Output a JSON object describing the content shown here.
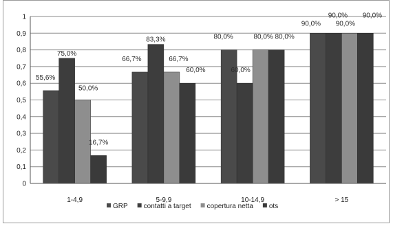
{
  "chart_data": {
    "type": "bar",
    "categories": [
      "1-4,9",
      "5-9,9",
      "10-14,9",
      "> 15"
    ],
    "series": [
      {
        "name": "GRP",
        "values": [
          0.556,
          0.667,
          0.8,
          0.9
        ],
        "labels": [
          "55,6%",
          "66,7%",
          "80,0%",
          "90,0%"
        ],
        "color": "#4a4a4a"
      },
      {
        "name": "contatti a target",
        "values": [
          0.75,
          0.833,
          0.6,
          0.9
        ],
        "labels": [
          "75,0%",
          "83,3%",
          "60,0%",
          "90,0%"
        ],
        "color": "#3d3d3d"
      },
      {
        "name": "copertura netta",
        "values": [
          0.5,
          0.667,
          0.8,
          0.9
        ],
        "labels": [
          "50,0%",
          "66,7%",
          "80,0%",
          "90,0%"
        ],
        "color": "#8e8e8e"
      },
      {
        "name": "ots",
        "values": [
          0.167,
          0.6,
          0.8,
          0.9
        ],
        "labels": [
          "16,7%",
          "60,0%",
          "80,0%",
          "90,0%"
        ],
        "color": "#3a3a3a"
      }
    ],
    "yticks": [
      "0",
      "0,1",
      "0,2",
      "0,3",
      "0,4",
      "0,5",
      "0,6",
      "0,7",
      "0,8",
      "0,9",
      "1"
    ],
    "ylim": [
      0,
      1
    ],
    "grid": true,
    "legend": "bottom"
  }
}
